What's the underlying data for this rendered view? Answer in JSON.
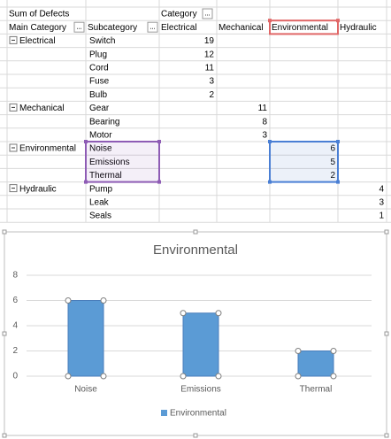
{
  "pivot": {
    "value_label": "Sum of Defects",
    "column_field": "Category",
    "row_headers": [
      "Main Category",
      "Subcategory"
    ],
    "columns": [
      "Electrical",
      "Mechanical",
      "Environmental",
      "Hydraulic"
    ],
    "groups": [
      {
        "name": "Electrical",
        "items": [
          {
            "name": "Switch",
            "value": 19
          },
          {
            "name": "Plug",
            "value": 12
          },
          {
            "name": "Cord",
            "value": 11
          },
          {
            "name": "Fuse",
            "value": 3
          },
          {
            "name": "Bulb",
            "value": 2
          }
        ]
      },
      {
        "name": "Mechanical",
        "items": [
          {
            "name": "Gear",
            "value": 11
          },
          {
            "name": "Bearing",
            "value": 8
          },
          {
            "name": "Motor",
            "value": 3
          }
        ]
      },
      {
        "name": "Environmental",
        "items": [
          {
            "name": "Noise",
            "value": 6
          },
          {
            "name": "Emissions",
            "value": 5
          },
          {
            "name": "Thermal",
            "value": 2
          }
        ]
      },
      {
        "name": "Hydraulic",
        "items": [
          {
            "name": "Pump",
            "value": 4
          },
          {
            "name": "Leak",
            "value": 3
          },
          {
            "name": "Seals",
            "value": 1
          }
        ]
      }
    ]
  },
  "chart_data": {
    "type": "bar",
    "title": "Environmental",
    "categories": [
      "Noise",
      "Emissions",
      "Thermal"
    ],
    "series": [
      {
        "name": "Environmental",
        "color": "#5b9bd5",
        "values": [
          6,
          5,
          2
        ]
      }
    ],
    "ylim": [
      0,
      8
    ],
    "yticks": [
      0,
      2,
      4,
      6,
      8
    ],
    "grid": true,
    "legend": "bottom"
  }
}
